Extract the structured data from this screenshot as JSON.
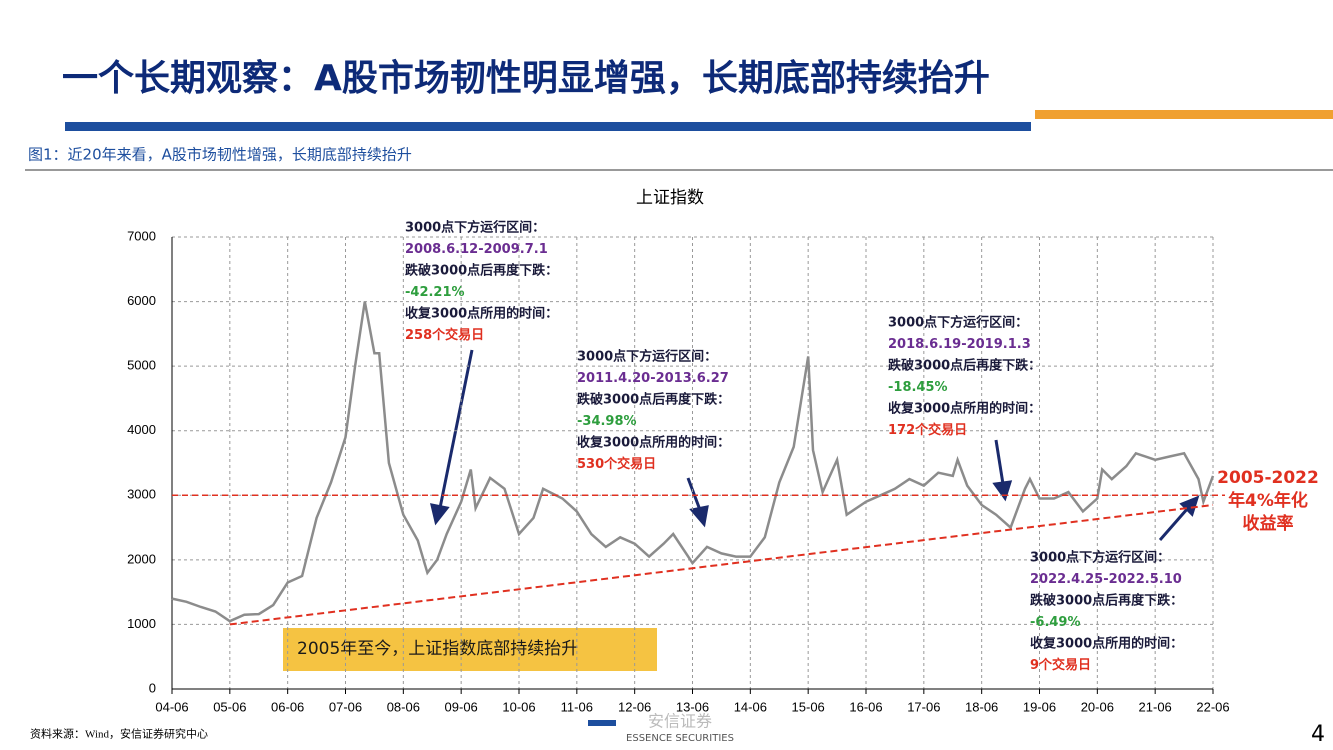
{
  "header": {
    "title": "一个长期观察：A股市场韧性明显增强，长期底部持续抬升",
    "subtitle": "图1：近20年来看，A股市场韧性增强，长期底部持续抬升"
  },
  "footer": {
    "source": "资料来源：Wind，安信证券研究中心",
    "page": "4",
    "logo_cn": "安信证券",
    "logo_en": "ESSENCE SECURITIES"
  },
  "chart_data": {
    "type": "line",
    "title": "上证指数",
    "x": [
      "04-06",
      "04-09",
      "04-12",
      "05-03",
      "05-06",
      "05-09",
      "05-12",
      "06-03",
      "06-06",
      "06-09",
      "06-12",
      "07-03",
      "07-06",
      "07-08",
      "07-10",
      "07-12",
      "08-01",
      "08-03",
      "08-06",
      "08-09",
      "08-11",
      "09-01",
      "09-03",
      "09-06",
      "09-08",
      "09-09",
      "09-12",
      "10-03",
      "10-06",
      "10-09",
      "10-11",
      "11-03",
      "11-06",
      "11-09",
      "11-12",
      "12-03",
      "12-06",
      "12-09",
      "12-12",
      "13-02",
      "13-06",
      "13-09",
      "13-12",
      "14-03",
      "14-06",
      "14-09",
      "14-12",
      "15-03",
      "15-06",
      "15-07",
      "15-09",
      "15-12",
      "16-02",
      "16-06",
      "16-09",
      "16-12",
      "17-03",
      "17-06",
      "17-09",
      "17-12",
      "18-01",
      "18-03",
      "18-06",
      "18-09",
      "18-12",
      "19-03",
      "19-04",
      "19-06",
      "19-09",
      "19-12",
      "20-03",
      "20-06",
      "20-07",
      "20-09",
      "20-12",
      "21-02",
      "21-06",
      "21-09",
      "21-12",
      "22-03",
      "22-04",
      "22-06"
    ],
    "values": [
      1400,
      1350,
      1270,
      1200,
      1050,
      1150,
      1160,
      1300,
      1650,
      1750,
      2650,
      3200,
      3900,
      5000,
      6000,
      5200,
      5200,
      3500,
      2700,
      2300,
      1800,
      2000,
      2400,
      2900,
      3400,
      2800,
      3270,
      3100,
      2400,
      2650,
      3100,
      2950,
      2750,
      2400,
      2200,
      2350,
      2250,
      2050,
      2250,
      2400,
      1950,
      2200,
      2100,
      2050,
      2050,
      2350,
      3200,
      3750,
      5150,
      3700,
      3050,
      3550,
      2700,
      2900,
      3000,
      3100,
      3250,
      3150,
      3350,
      3300,
      3550,
      3150,
      2850,
      2700,
      2500,
      3100,
      3250,
      2950,
      2950,
      3050,
      2750,
      2950,
      3400,
      3250,
      3450,
      3650,
      3550,
      3600,
      3650,
      3250,
      2900,
      3300
    ],
    "color": "#8c8c8c",
    "xlim": [
      "04-06",
      "22-06"
    ],
    "xticks": [
      "04-06",
      "05-06",
      "06-06",
      "07-06",
      "08-06",
      "09-06",
      "10-06",
      "11-06",
      "12-06",
      "13-06",
      "14-06",
      "15-06",
      "16-06",
      "17-06",
      "18-06",
      "19-06",
      "20-06",
      "21-06",
      "22-06"
    ],
    "ylim": [
      0,
      7000
    ],
    "yticks": [
      0,
      1000,
      2000,
      3000,
      4000,
      5000,
      6000,
      7000
    ],
    "grid": true,
    "reference_line": {
      "value": 3000,
      "color": "#e03020"
    },
    "trend_line": {
      "x": [
        "05-06",
        "22-06"
      ],
      "values": [
        1000,
        2850
      ],
      "color": "#e03020"
    },
    "annotations": [
      {
        "lines": [
          "3000点下方运行区间：",
          "2008.6.12-2009.7.1",
          "跌破3000点后再度下跌：",
          "-42.21%",
          "收复3000点所用的时间：",
          "258个交易日"
        ]
      },
      {
        "lines": [
          "3000点下方运行区间：",
          "2011.4.20-2013.6.27",
          "跌破3000点后再度下跌：",
          "-34.98%",
          "收复3000点所用的时间：",
          "530个交易日"
        ]
      },
      {
        "lines": [
          "3000点下方运行区间：",
          "2018.6.19-2019.1.3",
          "跌破3000点后再度下跌：",
          "-18.45%",
          "收复3000点所用的时间：",
          "172个交易日"
        ]
      },
      {
        "lines": [
          "3000点下方运行区间：",
          "2022.4.25-2022.5.10",
          "跌破3000点后再度下跌：",
          "-6.49%",
          "收复3000点所用的时间：",
          "9个交易日"
        ]
      }
    ],
    "callout": [
      "2005-2022",
      "年4%年化",
      "收益率"
    ],
    "box_note": "2005年至今，上证指数底部持续抬升"
  }
}
